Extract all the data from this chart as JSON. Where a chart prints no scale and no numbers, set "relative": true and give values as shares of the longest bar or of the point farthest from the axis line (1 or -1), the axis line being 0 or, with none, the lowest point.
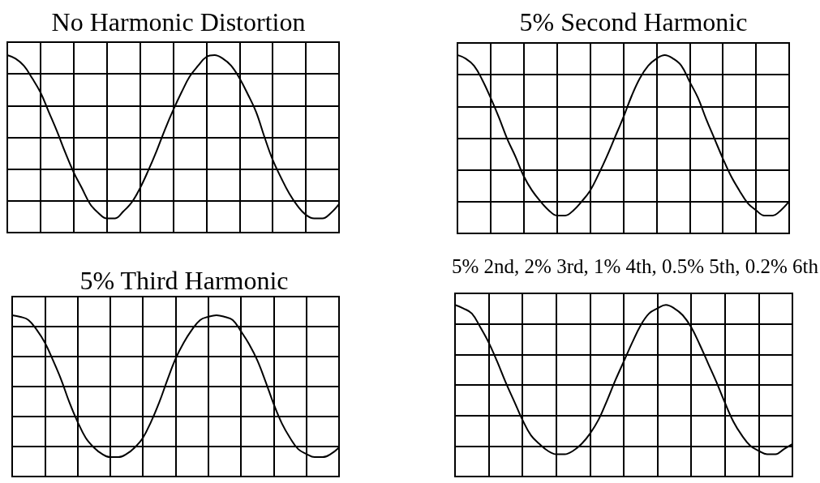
{
  "chart_data": [
    {
      "type": "line",
      "title": "No Harmonic Distortion",
      "relative": true,
      "grid": true,
      "color": "#000000",
      "categories": [
        null,
        null,
        null,
        null,
        null,
        null,
        null,
        null,
        null,
        null,
        null,
        null,
        null,
        null,
        null,
        null,
        null,
        null,
        null,
        null,
        null,
        null,
        null,
        null,
        null,
        null,
        null,
        null,
        null,
        null,
        null,
        null,
        null,
        null,
        null,
        null,
        null,
        null,
        null,
        null,
        null
      ],
      "values": [
        1,
        0.98,
        0.94,
        0.87,
        0.79,
        0.68,
        0.57,
        0.45,
        0.34,
        0.25,
        0.16,
        0.11,
        0.08,
        0.08,
        0.12,
        0.17,
        0.25,
        0.35,
        0.46,
        0.58,
        0.69,
        0.79,
        0.88,
        0.94,
        0.99,
        1,
        0.98,
        0.94,
        0.87,
        0.78,
        0.68,
        0.54,
        0.41,
        0.31,
        0.22,
        0.15,
        0.1,
        0.08,
        0.08,
        0.11,
        0.16
      ]
    },
    {
      "type": "line",
      "title": "5% Second Harmonic",
      "relative": true,
      "grid": true,
      "color": "#000000",
      "categories": [
        null,
        null,
        null,
        null,
        null,
        null,
        null,
        null,
        null,
        null,
        null,
        null,
        null,
        null,
        null,
        null,
        null,
        null,
        null,
        null,
        null,
        null,
        null,
        null,
        null,
        null,
        null,
        null,
        null,
        null,
        null,
        null,
        null,
        null,
        null,
        null,
        null,
        null,
        null,
        null,
        null
      ],
      "values": [
        1,
        0.98,
        0.94,
        0.86,
        0.76,
        0.65,
        0.53,
        0.43,
        0.32,
        0.24,
        0.18,
        0.13,
        0.1,
        0.1,
        0.13,
        0.18,
        0.24,
        0.33,
        0.43,
        0.54,
        0.65,
        0.77,
        0.87,
        0.94,
        0.98,
        1,
        0.98,
        0.94,
        0.85,
        0.76,
        0.64,
        0.53,
        0.42,
        0.32,
        0.24,
        0.17,
        0.13,
        0.1,
        0.1,
        0.13,
        0.18
      ]
    },
    {
      "type": "line",
      "title": "5% Third Harmonic",
      "relative": true,
      "grid": true,
      "color": "#000000",
      "categories": [
        null,
        null,
        null,
        null,
        null,
        null,
        null,
        null,
        null,
        null,
        null,
        null,
        null,
        null,
        null,
        null,
        null,
        null,
        null,
        null,
        null,
        null,
        null,
        null,
        null,
        null,
        null,
        null,
        null,
        null,
        null,
        null,
        null,
        null,
        null,
        null,
        null,
        null,
        null,
        null,
        null
      ],
      "values": [
        1,
        0.99,
        0.97,
        0.91,
        0.83,
        0.72,
        0.6,
        0.46,
        0.34,
        0.24,
        0.18,
        0.14,
        0.12,
        0.12,
        0.14,
        0.18,
        0.24,
        0.34,
        0.46,
        0.6,
        0.73,
        0.83,
        0.91,
        0.97,
        0.99,
        1,
        0.99,
        0.97,
        0.9,
        0.82,
        0.72,
        0.59,
        0.45,
        0.33,
        0.24,
        0.17,
        0.14,
        0.12,
        0.12,
        0.14,
        0.18
      ]
    },
    {
      "type": "line",
      "title": "5% 2nd, 2% 3rd, 1% 4th, 0.5% 5th, 0.2% 6th",
      "relative": true,
      "grid": true,
      "color": "#000000",
      "categories": [
        null,
        null,
        null,
        null,
        null,
        null,
        null,
        null,
        null,
        null,
        null,
        null,
        null,
        null,
        null,
        null,
        null,
        null,
        null,
        null,
        null,
        null,
        null,
        null,
        null,
        null,
        null,
        null,
        null,
        null,
        null,
        null,
        null,
        null,
        null,
        null,
        null,
        null,
        null,
        null,
        null
      ],
      "values": [
        1,
        0.98,
        0.95,
        0.87,
        0.78,
        0.67,
        0.55,
        0.44,
        0.33,
        0.24,
        0.19,
        0.15,
        0.13,
        0.13,
        0.15,
        0.19,
        0.25,
        0.33,
        0.44,
        0.56,
        0.67,
        0.78,
        0.88,
        0.95,
        0.98,
        1,
        0.98,
        0.94,
        0.87,
        0.77,
        0.66,
        0.55,
        0.43,
        0.32,
        0.24,
        0.18,
        0.15,
        0.13,
        0.13,
        0.16,
        0.19
      ]
    }
  ]
}
